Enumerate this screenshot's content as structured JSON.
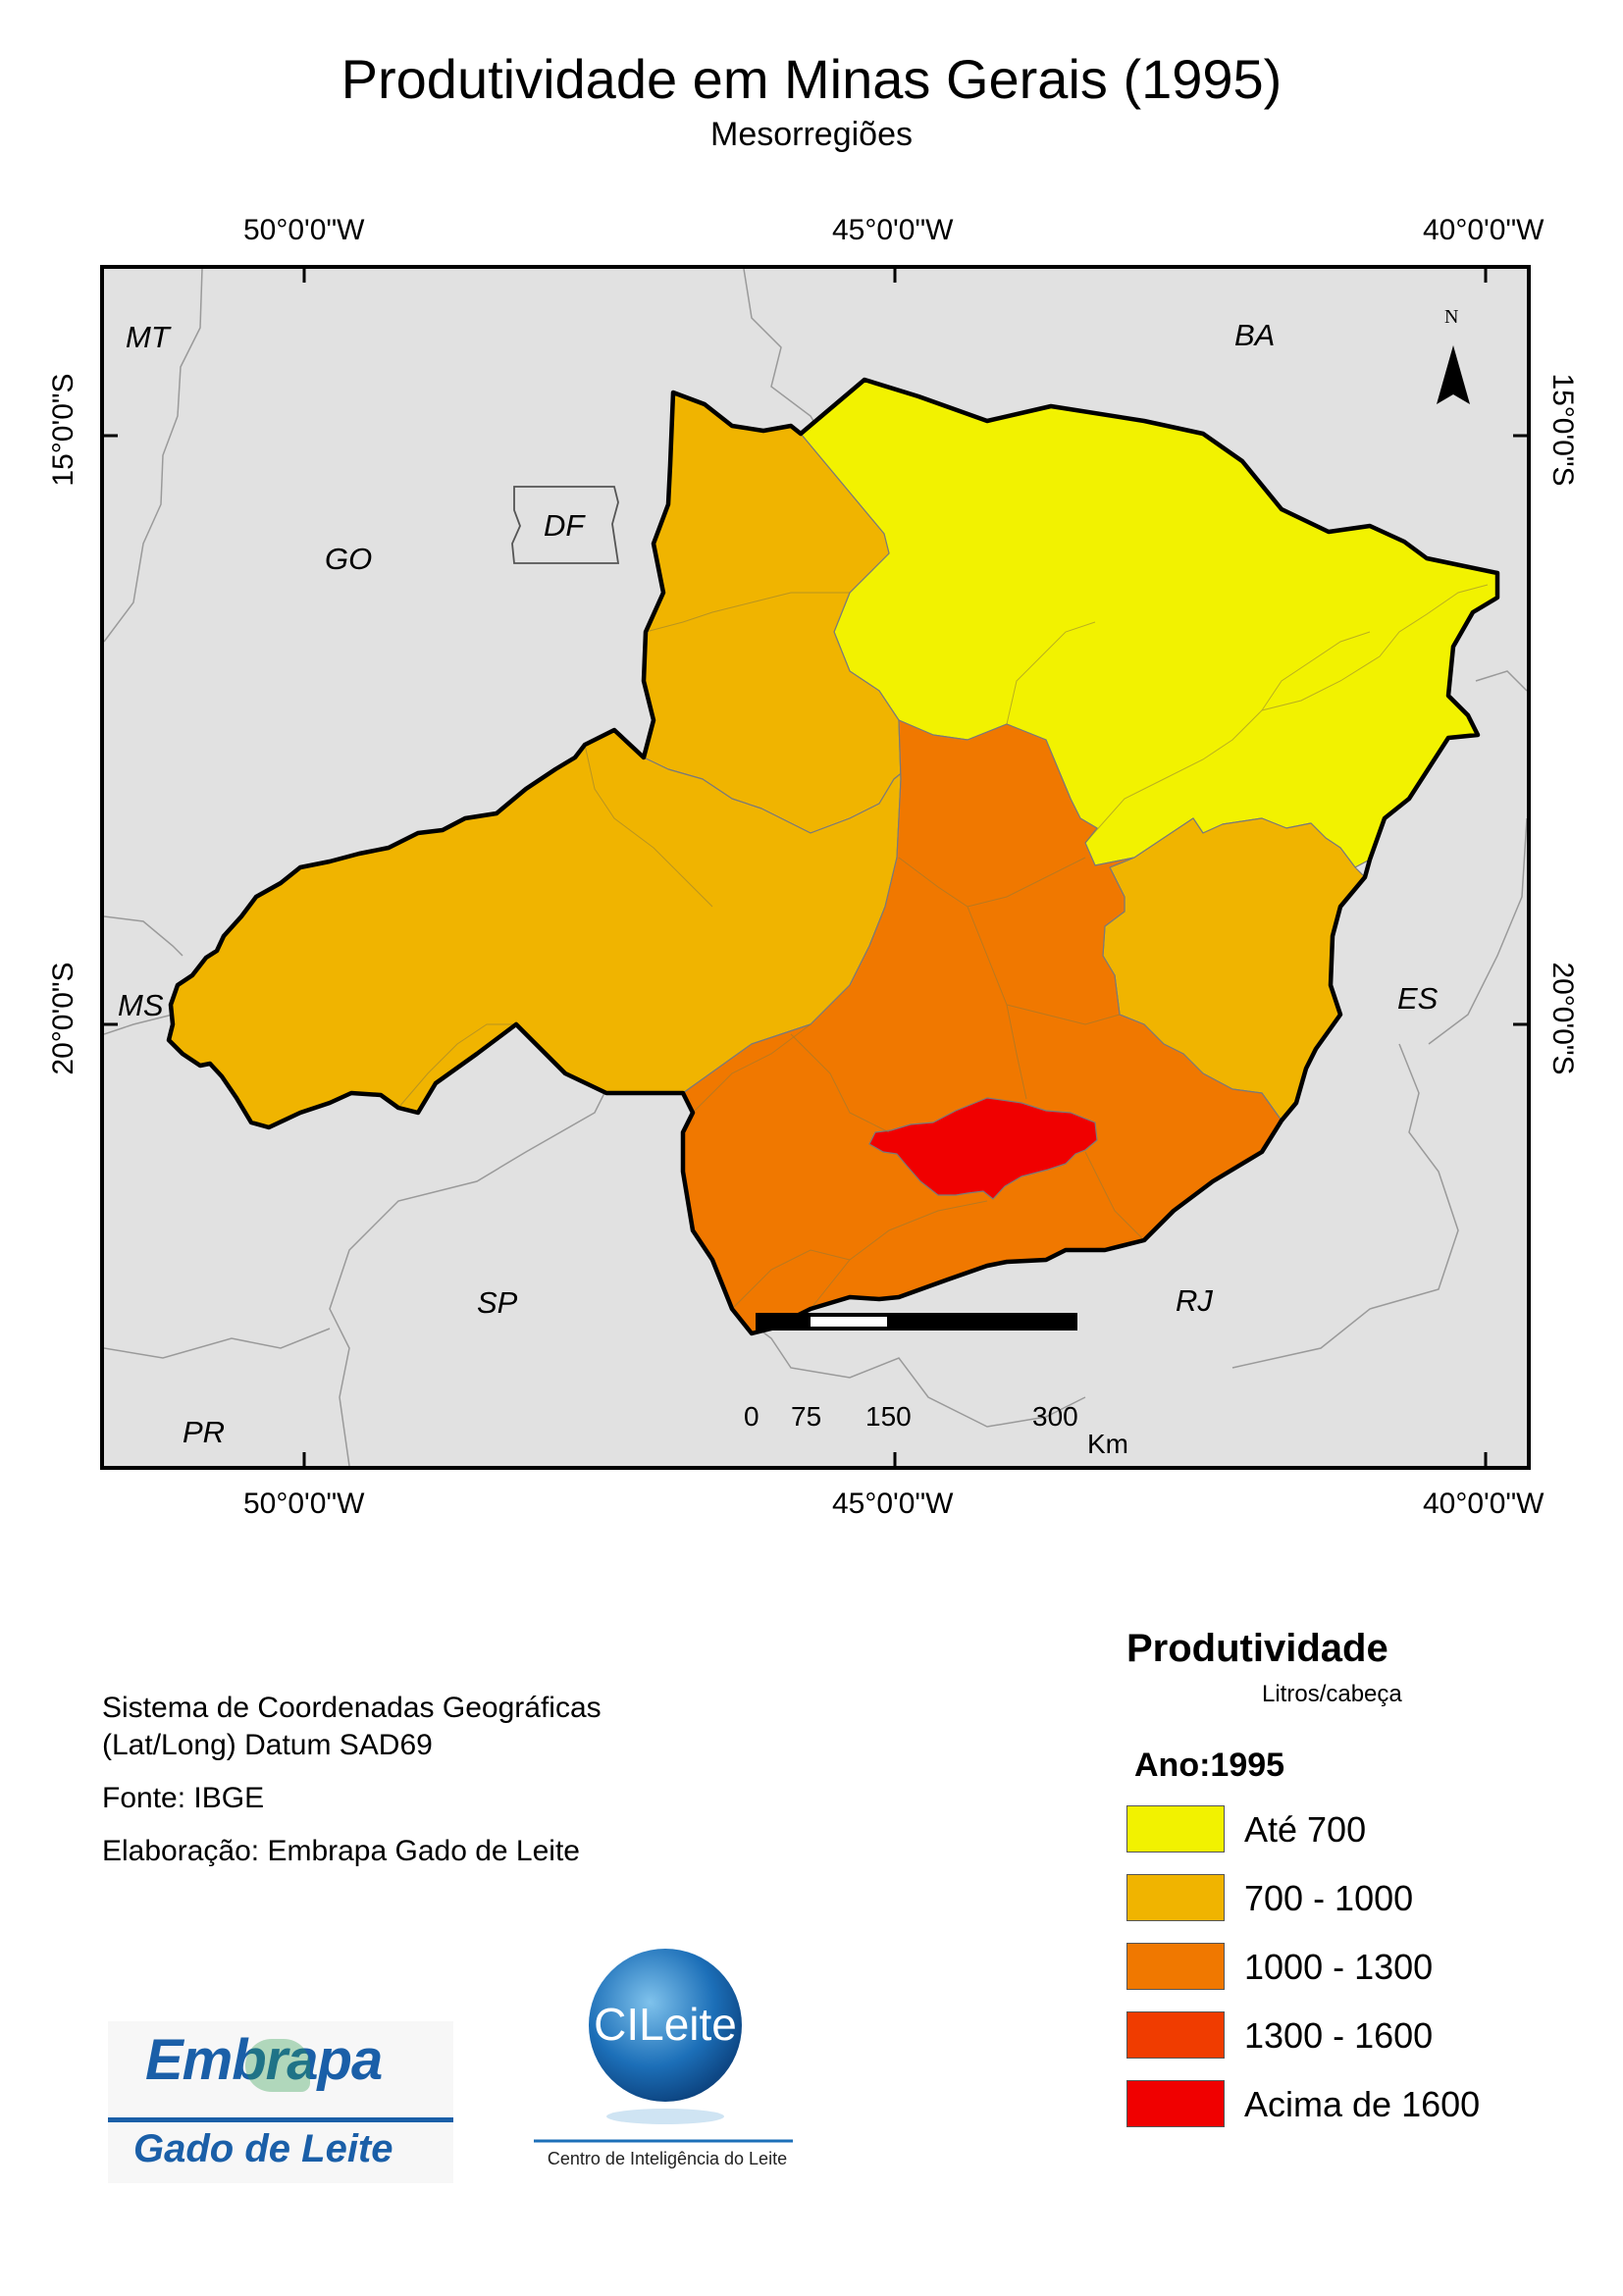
{
  "header": {
    "title": "Produtividade em Minas Gerais (1995)",
    "subtitle": "Mesorregiões"
  },
  "graticule": {
    "longitudes": [
      "50°0'0\"W",
      "45°0'0\"W",
      "40°0'0\"W"
    ],
    "latitudes": [
      "15°0'0\"S",
      "20°0'0\"S"
    ]
  },
  "map": {
    "states": [
      "MT",
      "BA",
      "GO",
      "DF",
      "MS",
      "ES",
      "SP",
      "RJ",
      "PR"
    ],
    "background_color": "#e1e1e1",
    "outline_color": "#000000",
    "north_arrow": {
      "letter": "N"
    },
    "scale_bar": {
      "ticks": [
        "0",
        "75",
        "150",
        "300"
      ],
      "unit": "Km"
    }
  },
  "legend": {
    "title": "Produtividade",
    "unit": "Litros/cabeça",
    "year_label": "Ano:1995",
    "classes": [
      {
        "label": "Até 700",
        "color": "#f2f200"
      },
      {
        "label": "700 - 1000",
        "color": "#f0b400"
      },
      {
        "label": "1000 - 1300",
        "color": "#f07800"
      },
      {
        "label": "1300 - 1600",
        "color": "#f03c00"
      },
      {
        "label": "Acima de 1600",
        "color": "#f00000"
      }
    ]
  },
  "info": {
    "crs_line1": "Sistema de Coordenadas Geográficas",
    "crs_line2": "(Lat/Long) Datum SAD69",
    "source": "Fonte: IBGE",
    "author": "Elaboração: Embrapa Gado de Leite"
  },
  "logos": {
    "embrapa_name": "Embrapa",
    "embrapa_unit": "Gado de Leite",
    "cileite_name": "CILeite",
    "cileite_caption": "Centro de Inteligência do Leite"
  }
}
